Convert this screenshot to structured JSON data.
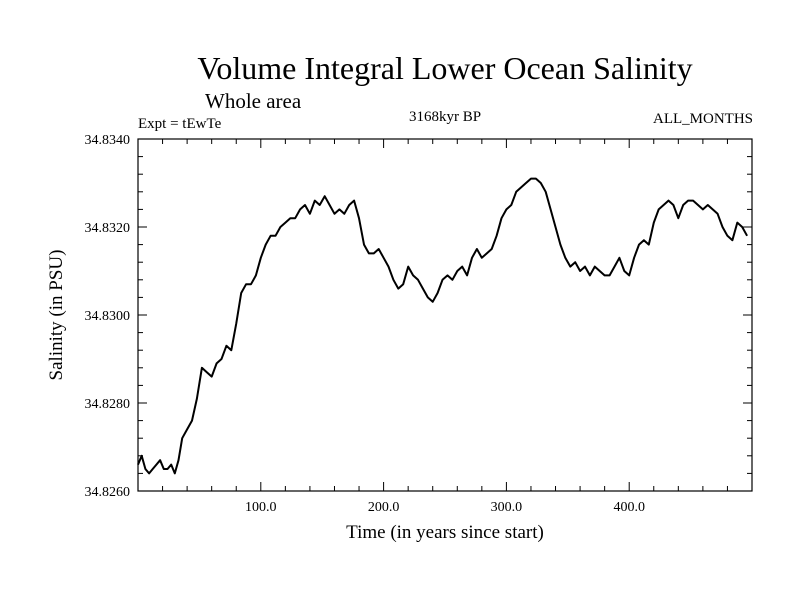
{
  "header": {
    "title": "Volume Integral Lower Ocean Salinity",
    "subtitle": "Whole area",
    "experiment": "Expt = tEwTe",
    "period": "3168kyr BP",
    "months": "ALL_MONTHS"
  },
  "chart_data": {
    "type": "line",
    "title": "Volume Integral Lower Ocean Salinity",
    "xlabel": "Time (in years since start)",
    "ylabel": "Salinity (in PSU)",
    "xlim": [
      0,
      500
    ],
    "ylim": [
      34.826,
      34.834
    ],
    "x_ticks": [
      100,
      200,
      300,
      400
    ],
    "x_tick_labels": [
      "100.0",
      "200.0",
      "300.0",
      "400.0"
    ],
    "y_ticks": [
      34.826,
      34.828,
      34.83,
      34.832,
      34.834
    ],
    "y_tick_labels": [
      "34.8260",
      "34.8280",
      "34.8300",
      "34.8320",
      "34.8340"
    ],
    "grid": false,
    "series": [
      {
        "name": "Salinity",
        "color": "#000000",
        "x": [
          0,
          3,
          6,
          9,
          12,
          15,
          18,
          21,
          24,
          27,
          30,
          33,
          36,
          40,
          44,
          48,
          52,
          56,
          60,
          64,
          68,
          72,
          76,
          80,
          84,
          88,
          92,
          96,
          100,
          104,
          108,
          112,
          116,
          120,
          124,
          128,
          132,
          136,
          140,
          144,
          148,
          152,
          156,
          160,
          164,
          168,
          172,
          176,
          180,
          184,
          188,
          192,
          196,
          200,
          204,
          208,
          212,
          216,
          220,
          224,
          228,
          232,
          236,
          240,
          244,
          248,
          252,
          256,
          260,
          264,
          268,
          272,
          276,
          280,
          284,
          288,
          292,
          296,
          300,
          304,
          308,
          312,
          316,
          320,
          324,
          328,
          332,
          336,
          340,
          344,
          348,
          352,
          356,
          360,
          364,
          368,
          372,
          376,
          380,
          384,
          388,
          392,
          396,
          400,
          404,
          408,
          412,
          416,
          420,
          424,
          428,
          432,
          436,
          440,
          444,
          448,
          452,
          456,
          460,
          464,
          468,
          472,
          476,
          480,
          484,
          488,
          492,
          496
        ],
        "values": [
          34.8266,
          34.8268,
          34.8265,
          34.8264,
          34.8265,
          34.8266,
          34.8267,
          34.8265,
          34.8265,
          34.8266,
          34.8264,
          34.8267,
          34.8272,
          34.8274,
          34.8276,
          34.8281,
          34.8288,
          34.8287,
          34.8286,
          34.8289,
          34.829,
          34.8293,
          34.8292,
          34.8298,
          34.8305,
          34.8307,
          34.8307,
          34.8309,
          34.8313,
          34.8316,
          34.8318,
          34.8318,
          34.832,
          34.8321,
          34.8322,
          34.8322,
          34.8324,
          34.8325,
          34.8323,
          34.8326,
          34.8325,
          34.8327,
          34.8325,
          34.8323,
          34.8324,
          34.8323,
          34.8325,
          34.8326,
          34.8322,
          34.8316,
          34.8314,
          34.8314,
          34.8315,
          34.8313,
          34.8311,
          34.8308,
          34.8306,
          34.8307,
          34.8311,
          34.8309,
          34.8308,
          34.8306,
          34.8304,
          34.8303,
          34.8305,
          34.8308,
          34.8309,
          34.8308,
          34.831,
          34.8311,
          34.8309,
          34.8313,
          34.8315,
          34.8313,
          34.8314,
          34.8315,
          34.8318,
          34.8322,
          34.8324,
          34.8325,
          34.8328,
          34.8329,
          34.833,
          34.8331,
          34.8331,
          34.833,
          34.8328,
          34.8324,
          34.832,
          34.8316,
          34.8313,
          34.8311,
          34.8312,
          34.831,
          34.8311,
          34.8309,
          34.8311,
          34.831,
          34.8309,
          34.8309,
          34.8311,
          34.8313,
          34.831,
          34.8309,
          34.8313,
          34.8316,
          34.8317,
          34.8316,
          34.8321,
          34.8324,
          34.8325,
          34.8326,
          34.8325,
          34.8322,
          34.8325,
          34.8326,
          34.8326,
          34.8325,
          34.8324,
          34.8325,
          34.8324,
          34.8323,
          34.832,
          34.8318,
          34.8317,
          34.8321,
          34.832,
          34.8318
        ]
      }
    ]
  }
}
